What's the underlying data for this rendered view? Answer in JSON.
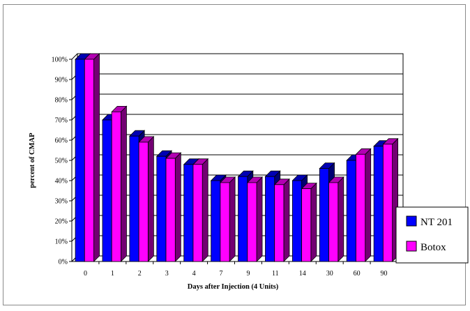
{
  "chart_data": {
    "type": "bar",
    "style": "3d-clustered-column",
    "categories": [
      "0",
      "1",
      "2",
      "3",
      "4",
      "7",
      "9",
      "11",
      "14",
      "30",
      "60",
      "90"
    ],
    "series": [
      {
        "name": "NT 201",
        "color": "#0000ff",
        "values": [
          100,
          70,
          62,
          52,
          48,
          40,
          42,
          42,
          40,
          46,
          50,
          57
        ]
      },
      {
        "name": "Botox",
        "color": "#ff00ff",
        "values": [
          100,
          74,
          59,
          51,
          48,
          39,
          39,
          38,
          36,
          39,
          53,
          58
        ]
      }
    ],
    "xlabel": "Days after Injection (4 Units)",
    "ylabel": "percent of CMAP",
    "ylim": [
      0,
      100
    ],
    "yticks": [
      "0%",
      "10%",
      "20%",
      "30%",
      "40%",
      "50%",
      "60%",
      "70%",
      "80%",
      "90%",
      "100%"
    ],
    "grid": true,
    "legend": "right"
  }
}
